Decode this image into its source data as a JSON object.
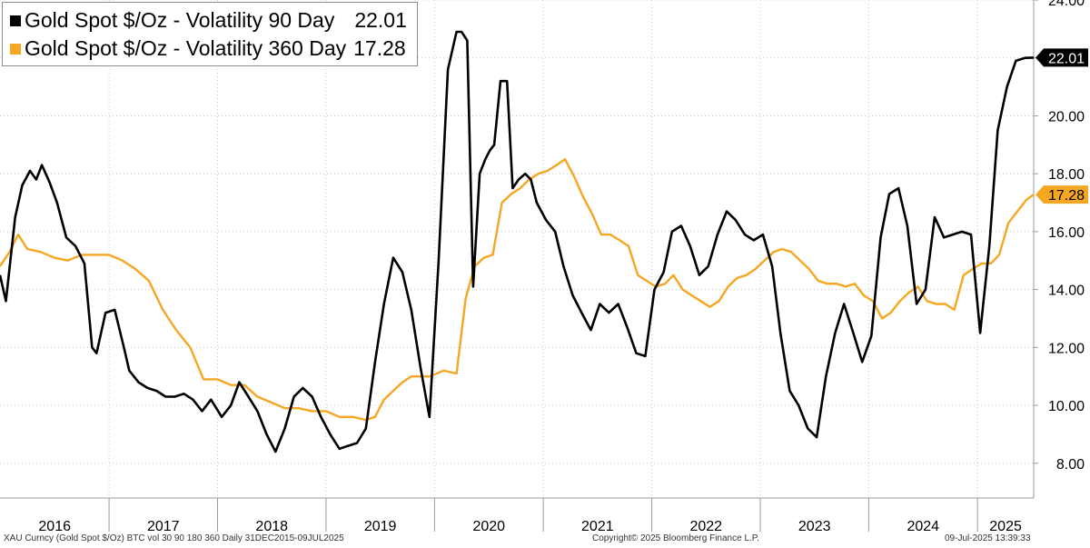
{
  "chart_data": {
    "type": "line",
    "title": "",
    "xlabel": "",
    "ylabel": "",
    "ylim": [
      6.8,
      24.0
    ],
    "xlim": [
      "2015-12-31",
      "2025-07-09"
    ],
    "y_ticks": [
      "24.00",
      "22.00",
      "20.00",
      "18.00",
      "16.00",
      "14.00",
      "12.00",
      "10.00",
      "8.00"
    ],
    "y_tick_values": [
      24,
      22,
      20,
      18,
      16,
      14,
      12,
      10,
      8
    ],
    "x_tick_labels": [
      "2016",
      "2017",
      "2018",
      "2019",
      "2020",
      "2021",
      "2022",
      "2023",
      "2024",
      "2025"
    ],
    "grid": true,
    "legend_position": "top-left",
    "series": [
      {
        "name": "Gold Spot $/Oz - Volatility 90 Day",
        "last_value": "22.01",
        "color": "#000000",
        "x": [
          "2015-12-31",
          "2016-01-20",
          "2016-02-20",
          "2016-03-15",
          "2016-04-10",
          "2016-05-01",
          "2016-05-20",
          "2016-06-15",
          "2016-07-10",
          "2016-08-10",
          "2016-09-10",
          "2016-10-10",
          "2016-11-05",
          "2016-11-20",
          "2016-12-20",
          "2017-01-20",
          "2017-02-20",
          "2017-03-10",
          "2017-04-10",
          "2017-05-10",
          "2017-06-10",
          "2017-07-10",
          "2017-08-10",
          "2017-09-10",
          "2017-10-10",
          "2017-11-10",
          "2017-12-10",
          "2018-01-15",
          "2018-02-15",
          "2018-03-15",
          "2018-04-15",
          "2018-05-15",
          "2018-06-15",
          "2018-07-15",
          "2018-08-15",
          "2018-09-15",
          "2018-10-15",
          "2018-11-15",
          "2018-12-15",
          "2019-01-15",
          "2019-02-15",
          "2019-03-15",
          "2019-04-15",
          "2019-05-15",
          "2019-06-15",
          "2019-07-15",
          "2019-08-15",
          "2019-09-15",
          "2019-10-15",
          "2019-11-15",
          "2019-12-15",
          "2020-01-15",
          "2020-02-15",
          "2020-03-15",
          "2020-04-01",
          "2020-04-20",
          "2020-05-10",
          "2020-06-01",
          "2020-06-20",
          "2020-07-05",
          "2020-07-20",
          "2020-08-10",
          "2020-09-01",
          "2020-09-20",
          "2020-10-10",
          "2020-11-01",
          "2020-11-20",
          "2020-12-10",
          "2021-01-10",
          "2021-02-10",
          "2021-03-10",
          "2021-04-10",
          "2021-05-10",
          "2021-06-10",
          "2021-07-10",
          "2021-08-10",
          "2021-09-10",
          "2021-10-10",
          "2021-11-10",
          "2021-12-10",
          "2022-01-10",
          "2022-02-10",
          "2022-03-10",
          "2022-04-10",
          "2022-05-10",
          "2022-06-10",
          "2022-07-10",
          "2022-08-10",
          "2022-09-10",
          "2022-10-10",
          "2022-11-10",
          "2022-12-10",
          "2023-01-10",
          "2023-02-10",
          "2023-03-10",
          "2023-04-10",
          "2023-05-10",
          "2023-06-10",
          "2023-07-10",
          "2023-08-10",
          "2023-09-10",
          "2023-10-10",
          "2023-11-10",
          "2023-12-10",
          "2024-01-10",
          "2024-02-10",
          "2024-03-10",
          "2024-04-10",
          "2024-05-10",
          "2024-06-10",
          "2024-07-10",
          "2024-08-10",
          "2024-09-10",
          "2024-10-10",
          "2024-11-10",
          "2024-12-10",
          "2025-01-10",
          "2025-02-10",
          "2025-03-10",
          "2025-04-10",
          "2025-05-10",
          "2025-06-10",
          "2025-07-09"
        ],
        "values": [
          14.5,
          13.6,
          16.5,
          17.6,
          18.1,
          17.8,
          18.3,
          17.7,
          17.0,
          15.8,
          15.5,
          14.9,
          12.0,
          11.8,
          13.2,
          13.3,
          12.0,
          11.2,
          10.8,
          10.6,
          10.5,
          10.3,
          10.3,
          10.4,
          10.2,
          9.8,
          10.2,
          9.6,
          10.0,
          10.8,
          10.3,
          9.8,
          9.0,
          8.4,
          9.2,
          10.3,
          10.6,
          10.3,
          9.6,
          9.0,
          8.5,
          8.6,
          8.7,
          9.2,
          11.5,
          13.5,
          15.1,
          14.6,
          13.3,
          11.3,
          9.6,
          15.0,
          21.6,
          22.9,
          22.9,
          22.6,
          14.1,
          18.0,
          18.5,
          18.8,
          19.0,
          21.2,
          21.2,
          17.5,
          17.8,
          18.0,
          17.8,
          17.0,
          16.4,
          16.0,
          14.8,
          13.8,
          13.2,
          12.6,
          13.5,
          13.2,
          13.5,
          12.7,
          11.8,
          11.7,
          14.0,
          14.6,
          16.0,
          16.2,
          15.5,
          14.5,
          14.8,
          15.9,
          16.7,
          16.4,
          15.9,
          15.7,
          15.9,
          14.8,
          12.5,
          10.5,
          10.0,
          9.2,
          8.9,
          11.0,
          12.5,
          13.5,
          12.5,
          11.5,
          12.4,
          15.8,
          17.3,
          17.5,
          16.2,
          13.5,
          14.0,
          16.5,
          15.8,
          15.9,
          16.0,
          15.9,
          12.5,
          15.5,
          19.5,
          21.0,
          21.9,
          22.0,
          22.01
        ]
      },
      {
        "name": "Gold Spot $/Oz - Volatility 360 Day",
        "last_value": "17.28",
        "color": "#f5a623",
        "x": [
          "2015-12-31",
          "2016-02-01",
          "2016-03-01",
          "2016-04-01",
          "2016-05-15",
          "2016-07-01",
          "2016-08-15",
          "2016-10-01",
          "2016-11-15",
          "2017-01-01",
          "2017-02-15",
          "2017-04-01",
          "2017-05-15",
          "2017-07-01",
          "2017-08-15",
          "2017-10-01",
          "2017-11-15",
          "2018-01-01",
          "2018-02-15",
          "2018-04-01",
          "2018-05-15",
          "2018-07-01",
          "2018-08-15",
          "2018-10-01",
          "2018-11-15",
          "2019-01-01",
          "2019-02-15",
          "2019-04-01",
          "2019-05-15",
          "2019-06-15",
          "2019-07-15",
          "2019-08-15",
          "2019-09-15",
          "2019-10-15",
          "2019-12-15",
          "2020-02-01",
          "2020-03-15",
          "2020-04-15",
          "2020-05-15",
          "2020-06-15",
          "2020-07-15",
          "2020-08-15",
          "2020-09-15",
          "2020-10-15",
          "2020-11-15",
          "2020-12-15",
          "2021-01-15",
          "2021-02-15",
          "2021-03-15",
          "2021-04-15",
          "2021-05-15",
          "2021-06-15",
          "2021-07-15",
          "2021-08-15",
          "2021-09-15",
          "2021-10-15",
          "2021-11-15",
          "2021-12-15",
          "2022-01-15",
          "2022-02-15",
          "2022-03-15",
          "2022-04-15",
          "2022-05-15",
          "2022-06-15",
          "2022-07-15",
          "2022-08-15",
          "2022-09-15",
          "2022-10-15",
          "2022-11-15",
          "2022-12-15",
          "2023-01-15",
          "2023-02-15",
          "2023-03-15",
          "2023-04-15",
          "2023-05-15",
          "2023-06-15",
          "2023-07-15",
          "2023-08-15",
          "2023-09-15",
          "2023-10-15",
          "2023-11-15",
          "2023-12-15",
          "2024-01-15",
          "2024-02-15",
          "2024-03-15",
          "2024-04-15",
          "2024-05-15",
          "2024-06-15",
          "2024-07-15",
          "2024-08-15",
          "2024-09-15",
          "2024-10-15",
          "2024-11-15",
          "2024-12-15",
          "2025-01-15",
          "2025-02-15",
          "2025-03-15",
          "2025-04-15",
          "2025-05-15",
          "2025-06-15",
          "2025-07-09"
        ],
        "values": [
          14.8,
          15.3,
          15.9,
          15.4,
          15.3,
          15.1,
          15.0,
          15.2,
          15.2,
          15.2,
          15.0,
          14.7,
          14.3,
          13.3,
          12.6,
          12.0,
          10.9,
          10.9,
          10.7,
          10.7,
          10.3,
          10.1,
          9.9,
          9.9,
          9.8,
          9.8,
          9.6,
          9.6,
          9.5,
          9.6,
          10.2,
          10.5,
          10.8,
          11.0,
          11.0,
          11.2,
          11.1,
          13.7,
          14.8,
          15.1,
          15.2,
          17.0,
          17.3,
          17.5,
          17.8,
          18.0,
          18.1,
          18.3,
          18.5,
          17.9,
          17.2,
          16.6,
          15.9,
          15.9,
          15.7,
          15.5,
          14.5,
          14.3,
          14.1,
          14.2,
          14.5,
          14.0,
          13.8,
          13.6,
          13.4,
          13.6,
          14.1,
          14.4,
          14.5,
          14.7,
          15.0,
          15.3,
          15.4,
          15.3,
          15.0,
          14.7,
          14.3,
          14.2,
          14.2,
          14.1,
          14.2,
          13.8,
          13.6,
          13.0,
          13.2,
          13.6,
          13.9,
          14.1,
          13.6,
          13.5,
          13.5,
          13.3,
          14.5,
          14.7,
          14.9,
          14.9,
          15.2,
          16.3,
          16.7,
          17.1,
          17.28
        ]
      }
    ]
  },
  "legend": {
    "items": [
      {
        "label": "Gold Spot $/Oz - Volatility 90 Day",
        "value": "22.01",
        "color": "#000000"
      },
      {
        "label": "Gold Spot $/Oz - Volatility 360 Day",
        "value": "17.28",
        "color": "#f5a623"
      }
    ]
  },
  "footer": {
    "source": "XAU Curncy (Gold Spot  $/Oz) BTC vol 30 90 180 360  Daily 31DEC2015-09JUL2025",
    "copyright": "Copyright© 2025 Bloomberg Finance L.P.",
    "timestamp": "09-Jul-2025 13:39:33"
  }
}
